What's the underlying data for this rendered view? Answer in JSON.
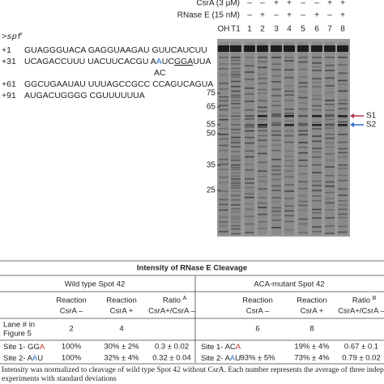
{
  "gel": {
    "csra_label": "CsrA (3 µM)",
    "rnase_label": "RNase E (15 nM)",
    "csra_signs": [
      "–",
      "–",
      "+",
      "+",
      "–",
      "–",
      "+",
      "+"
    ],
    "rnase_signs": [
      "–",
      "+",
      "–",
      "+",
      "–",
      "+",
      "–",
      "+"
    ],
    "lanes": [
      "OH",
      "T1",
      "1",
      "2",
      "3",
      "4",
      "5",
      "6",
      "7",
      "8"
    ],
    "markers": [
      "75",
      "65",
      "55",
      "50",
      "35",
      "25"
    ],
    "sites": [
      "S1",
      "S2"
    ]
  },
  "sequence": {
    "name": ">spf",
    "lines": [
      {
        "pos": "+1",
        "parts": [
          "GUAGGGUACA GAGGUAAGAU GUUCAUCUU"
        ]
      },
      {
        "pos": "+31",
        "parts": [
          "UCAGACCUUU UACUUCACGU A",
          "A",
          "UC",
          "GGA",
          "UUA"
        ]
      },
      {
        "pos": "+61",
        "parts": [
          "GGCUGAAUAU UUUAGCCGCC CCAGUCAGUA"
        ]
      },
      {
        "pos": "+91",
        "parts": [
          "AUGACUGGGG CGUUUUUUA"
        ]
      }
    ],
    "mutation": "AC"
  },
  "table": {
    "title": "Intensity of RNase E Cleavage",
    "groups": [
      "Wild type Spot 42",
      "ACA-mutant Spot 42"
    ],
    "col_headers": [
      [
        "Reaction",
        "CsrA –"
      ],
      [
        "Reaction",
        "CsrA +"
      ],
      [
        "Ratio",
        "A",
        "CsrA+/CsrA –"
      ],
      [
        "Reaction",
        "CsrA –"
      ],
      [
        "Reaction",
        "CsrA +"
      ],
      [
        "Ratio",
        "B",
        "CsrA+/CsrA –"
      ]
    ],
    "lane_row": {
      "label": [
        "Lane # in",
        "Figure 5"
      ],
      "values": [
        "2",
        "4",
        "6",
        "8"
      ]
    },
    "site_rows": [
      {
        "wt_label": [
          "Site 1- GG",
          "A"
        ],
        "wt": [
          "100%",
          "30% ± 2%",
          "0.3 ± 0.02"
        ],
        "mut_label": [
          "Site 1- AC",
          "A"
        ],
        "mut": [
          "19% ± 4%",
          "0.67 ± 0.1"
        ]
      },
      {
        "wt_label": [
          "Site 2- A",
          "A",
          "U"
        ],
        "wt": [
          "100%",
          "32% ± 4%",
          "0.32 ± 0.04"
        ],
        "mut_label": [
          "Site 2- A",
          "A",
          "U"
        ],
        "mut": [
          "93% ± 5%",
          "73% ± 4%",
          "0.79 ± 0.02"
        ]
      }
    ]
  },
  "footnote": [
    "Intensity was normalized to cleavage of wild type Spot 42 without CsrA. Each number represents the average of three independent",
    "experiments with standard deviations"
  ]
}
